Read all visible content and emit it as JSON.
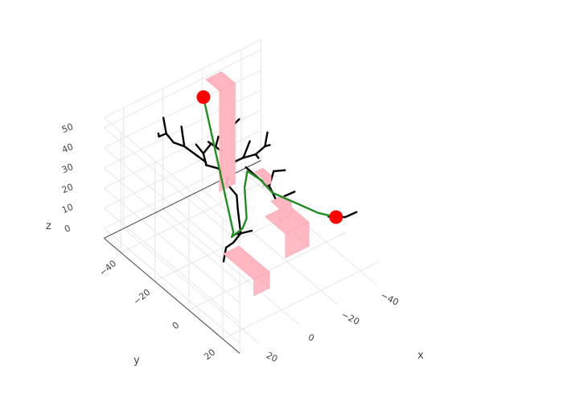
{
  "chart_data": {
    "type": "scatter",
    "title": "",
    "axes": {
      "x": {
        "label": "x",
        "ticks": [
          -40,
          -20,
          0,
          20
        ],
        "range": [
          -50,
          30
        ]
      },
      "y": {
        "label": "y",
        "ticks": [
          -40,
          -20,
          0,
          20
        ],
        "range": [
          -50,
          30
        ]
      },
      "z": {
        "label": "z",
        "ticks": [
          0,
          10,
          20,
          30,
          40,
          50
        ],
        "range": [
          -5,
          55
        ]
      }
    },
    "grid": true,
    "legend": "none",
    "obstacle_color": "#ffb6c1",
    "obstacles": [
      {
        "center": [
          -25,
          -45,
          25
        ],
        "size": [
          8,
          8,
          50
        ]
      },
      {
        "center": [
          -20,
          0,
          10
        ],
        "size": [
          12,
          12,
          12
        ]
      },
      {
        "center": [
          -30,
          -15,
          6
        ],
        "size": [
          6,
          5,
          6
        ]
      },
      {
        "center": [
          -25,
          -20,
          20
        ],
        "size": [
          4,
          5,
          4
        ]
      },
      {
        "center": [
          5,
          5,
          6
        ],
        "size": [
          8,
          18,
          8
        ]
      }
    ],
    "start": {
      "x": -25,
      "y": -55,
      "z": 35,
      "color": "#ff0000"
    },
    "goal": {
      "x": -45,
      "y": 0,
      "z": 5,
      "color": "#ff0000"
    },
    "tree": {
      "color": "#000000",
      "segments": [
        [
          [
            -10,
            -20,
            -5
          ],
          [
            -12,
            -18,
            0
          ]
        ],
        [
          [
            -12,
            -18,
            0
          ],
          [
            -15,
            -15,
            2
          ]
        ],
        [
          [
            -12,
            -18,
            0
          ],
          [
            -8,
            -16,
            3
          ]
        ],
        [
          [
            -10,
            -20,
            -5
          ],
          [
            -8,
            -22,
            -8
          ]
        ],
        [
          [
            -8,
            -22,
            -8
          ],
          [
            -5,
            -20,
            -12
          ]
        ],
        [
          [
            -12,
            -18,
            0
          ],
          [
            -14,
            -22,
            8
          ]
        ],
        [
          [
            -14,
            -22,
            8
          ],
          [
            -16,
            -25,
            12
          ]
        ],
        [
          [
            -16,
            -25,
            12
          ],
          [
            -15,
            -30,
            15
          ]
        ],
        [
          [
            -15,
            -30,
            15
          ],
          [
            -18,
            -32,
            16
          ]
        ],
        [
          [
            -18,
            -32,
            16
          ],
          [
            -20,
            -35,
            18
          ]
        ],
        [
          [
            -20,
            -35,
            18
          ],
          [
            -22,
            -38,
            20
          ]
        ],
        [
          [
            -22,
            -38,
            20
          ],
          [
            -20,
            -42,
            22
          ]
        ],
        [
          [
            -20,
            -42,
            22
          ],
          [
            -18,
            -44,
            24
          ]
        ],
        [
          [
            -20,
            -42,
            22
          ],
          [
            -24,
            -45,
            23
          ]
        ],
        [
          [
            -20,
            -35,
            18
          ],
          [
            -26,
            -33,
            20
          ]
        ],
        [
          [
            -26,
            -33,
            20
          ],
          [
            -30,
            -30,
            22
          ]
        ],
        [
          [
            -30,
            -30,
            22
          ],
          [
            -33,
            -28,
            26
          ]
        ],
        [
          [
            -33,
            -28,
            26
          ],
          [
            -36,
            -30,
            30
          ]
        ],
        [
          [
            -33,
            -28,
            26
          ],
          [
            -32,
            -24,
            30
          ]
        ],
        [
          [
            -30,
            -30,
            22
          ],
          [
            -28,
            -26,
            24
          ]
        ],
        [
          [
            -26,
            -33,
            20
          ],
          [
            -24,
            -30,
            24
          ]
        ],
        [
          [
            -24,
            -30,
            24
          ],
          [
            -27,
            -30,
            30
          ]
        ],
        [
          [
            -22,
            -38,
            20
          ],
          [
            -26,
            -40,
            24
          ]
        ],
        [
          [
            -26,
            -40,
            24
          ],
          [
            -28,
            -42,
            28
          ]
        ],
        [
          [
            -28,
            -42,
            28
          ],
          [
            -25,
            -44,
            32
          ]
        ],
        [
          [
            -28,
            -42,
            28
          ],
          [
            -32,
            -42,
            30
          ]
        ],
        [
          [
            -18,
            -32,
            16
          ],
          [
            -14,
            -34,
            20
          ]
        ],
        [
          [
            -14,
            -34,
            20
          ],
          [
            -10,
            -36,
            22
          ]
        ],
        [
          [
            -10,
            -36,
            22
          ],
          [
            -8,
            -34,
            26
          ]
        ],
        [
          [
            -8,
            -34,
            26
          ],
          [
            -6,
            -38,
            28
          ]
        ],
        [
          [
            -10,
            -36,
            22
          ],
          [
            -12,
            -40,
            24
          ]
        ],
        [
          [
            -12,
            -40,
            24
          ],
          [
            -10,
            -42,
            28
          ]
        ],
        [
          [
            -12,
            -40,
            24
          ],
          [
            -16,
            -40,
            27
          ]
        ],
        [
          [
            -6,
            -38,
            28
          ],
          [
            -4,
            -42,
            30
          ]
        ],
        [
          [
            -4,
            -42,
            30
          ],
          [
            -2,
            -46,
            30
          ]
        ],
        [
          [
            -2,
            -46,
            30
          ],
          [
            0,
            -48,
            34
          ]
        ],
        [
          [
            0,
            -48,
            34
          ],
          [
            2,
            -50,
            32
          ]
        ],
        [
          [
            2,
            -50,
            32
          ],
          [
            4,
            -48,
            36
          ]
        ],
        [
          [
            0,
            -48,
            34
          ],
          [
            -2,
            -52,
            38
          ]
        ],
        [
          [
            -4,
            -42,
            30
          ],
          [
            -6,
            -46,
            36
          ]
        ],
        [
          [
            -25,
            -30,
            18
          ],
          [
            -28,
            -25,
            14
          ]
        ],
        [
          [
            -28,
            -25,
            14
          ],
          [
            -30,
            -22,
            12
          ]
        ],
        [
          [
            -30,
            -22,
            12
          ],
          [
            -34,
            -24,
            16
          ]
        ],
        [
          [
            -34,
            -24,
            16
          ],
          [
            -38,
            -22,
            16
          ]
        ],
        [
          [
            -30,
            -22,
            12
          ],
          [
            -30,
            -18,
            8
          ]
        ],
        [
          [
            -30,
            -18,
            8
          ],
          [
            -32,
            -16,
            10
          ]
        ],
        [
          [
            -32,
            -16,
            10
          ],
          [
            -36,
            -14,
            12
          ]
        ],
        [
          [
            -45,
            0,
            5
          ],
          [
            -48,
            2,
            5
          ]
        ],
        [
          [
            -48,
            2,
            5
          ],
          [
            -52,
            4,
            7
          ]
        ],
        [
          [
            -45,
            0,
            5
          ],
          [
            -42,
            -1,
            6
          ]
        ]
      ]
    },
    "path": {
      "color": "#228b22",
      "points": [
        [
          -25,
          -55,
          35
        ],
        [
          -10,
          -20,
          0
        ],
        [
          -10,
          -21,
          -3
        ],
        [
          -13,
          -18,
          2
        ],
        [
          -15,
          -18,
          6
        ],
        [
          -20,
          -25,
          14
        ],
        [
          -24,
          -28,
          18
        ],
        [
          -28,
          -25,
          14
        ],
        [
          -30,
          -20,
          10
        ],
        [
          -36,
          -10,
          8
        ],
        [
          -40,
          -5,
          6
        ],
        [
          -45,
          0,
          5
        ]
      ]
    }
  }
}
